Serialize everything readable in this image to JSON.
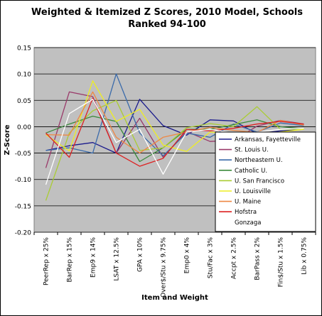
{
  "chart_data": {
    "type": "line",
    "title_lines": [
      "Weighted & Itemized Z Scores, 2010 Model, Schools",
      "Ranked 94-100"
    ],
    "xlabel": "Item and Weight",
    "ylabel": "Z-Score",
    "ylim": [
      -0.2,
      0.15
    ],
    "yticks": [
      0.15,
      0.1,
      0.05,
      0.0,
      -0.05,
      -0.1,
      -0.15,
      -0.2
    ],
    "ytick_labels": [
      "0.15",
      "0.10",
      "0.05",
      "0.00",
      "-0.05",
      "-0.10",
      "-0.15",
      "-0.20"
    ],
    "grid": true,
    "legend_position": "lower-right-inside",
    "categories": [
      "PeerRep x 25%",
      "BarRep x 15%",
      "Emp9 x 14%",
      "LSAT x 12.5%",
      "GPA x 10%",
      "Over$/Stu x 9.75%",
      "Emp0 x 4%",
      "Stu/Fac x 3%",
      "Accpt x 2.5%",
      "BarPass x 2%",
      "Fin$/Stu x 1.5%",
      "Lib x 0.75%"
    ],
    "series": [
      {
        "name": "Arkansas, Fayetteville",
        "color": "#1a1a8c",
        "values": [
          -0.045,
          -0.036,
          -0.03,
          -0.05,
          0.052,
          0.002,
          -0.016,
          0.013,
          0.011,
          -0.013,
          -0.008,
          -0.005
        ]
      },
      {
        "name": "St. Louis U.",
        "color": "#9a3a6a",
        "values": [
          -0.078,
          0.066,
          0.057,
          -0.05,
          0.016,
          -0.058,
          -0.009,
          -0.028,
          -0.026,
          0.001,
          0.012,
          0.005
        ]
      },
      {
        "name": "Northeastern U.",
        "color": "#3a6aaa",
        "values": [
          -0.045,
          -0.04,
          -0.05,
          0.1,
          -0.012,
          -0.055,
          -0.012,
          -0.02,
          0.005,
          -0.01,
          0.007,
          0.002
        ]
      },
      {
        "name": "Catholic U.",
        "color": "#3a8a3a",
        "values": [
          -0.012,
          0.005,
          0.02,
          0.01,
          -0.066,
          -0.04,
          -0.005,
          -0.005,
          0.004,
          0.013,
          0.0,
          -0.004
        ]
      },
      {
        "name": "U. San Francisco",
        "color": "#aacc33",
        "values": [
          -0.14,
          -0.012,
          0.03,
          0.05,
          -0.045,
          -0.04,
          -0.002,
          0.006,
          0.0,
          0.038,
          -0.005,
          -0.005
        ]
      },
      {
        "name": "U. Louisville",
        "color": "#eeee22",
        "values": [
          -0.015,
          -0.046,
          0.087,
          0.01,
          0.033,
          -0.035,
          -0.047,
          -0.01,
          -0.015,
          -0.015,
          -0.01,
          -0.005
        ]
      },
      {
        "name": "U. Maine",
        "color": "#ee8844",
        "values": [
          -0.015,
          -0.016,
          0.066,
          -0.02,
          -0.05,
          -0.02,
          -0.01,
          -0.001,
          -0.007,
          -0.011,
          0.012,
          0.003
        ]
      },
      {
        "name": "Hofstra",
        "color": "#dd2222",
        "values": [
          -0.012,
          -0.058,
          0.054,
          -0.05,
          -0.075,
          -0.06,
          -0.005,
          -0.008,
          -0.003,
          0.005,
          0.01,
          0.005
        ]
      },
      {
        "name": "Gonzaga",
        "color": "#ffffff",
        "values": [
          -0.11,
          0.025,
          0.052,
          -0.03,
          -0.005,
          -0.09,
          -0.01,
          -0.005,
          -0.012,
          -0.01,
          -0.005,
          -0.003
        ]
      }
    ]
  }
}
